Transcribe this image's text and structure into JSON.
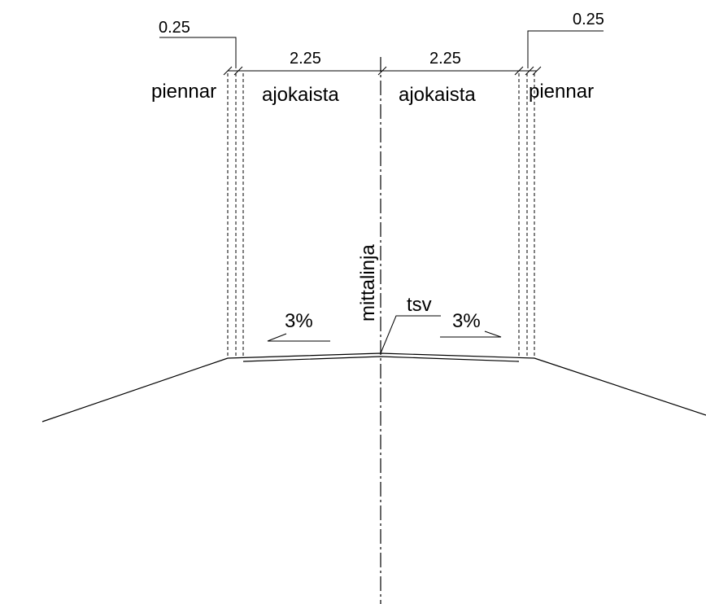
{
  "labels": {
    "shoulder_left": "piennar",
    "lane_left": "ajokaista",
    "lane_right": "ajokaista",
    "shoulder_right": "piennar",
    "centerline": "mittalinja",
    "tsv": "tsv"
  },
  "dimensions": {
    "shoulder_left_width": "0.25",
    "lane_left_width": "2.25",
    "lane_right_width": "2.25",
    "shoulder_right_width": "0.25"
  },
  "slopes": {
    "left": "3%",
    "right": "3%"
  }
}
